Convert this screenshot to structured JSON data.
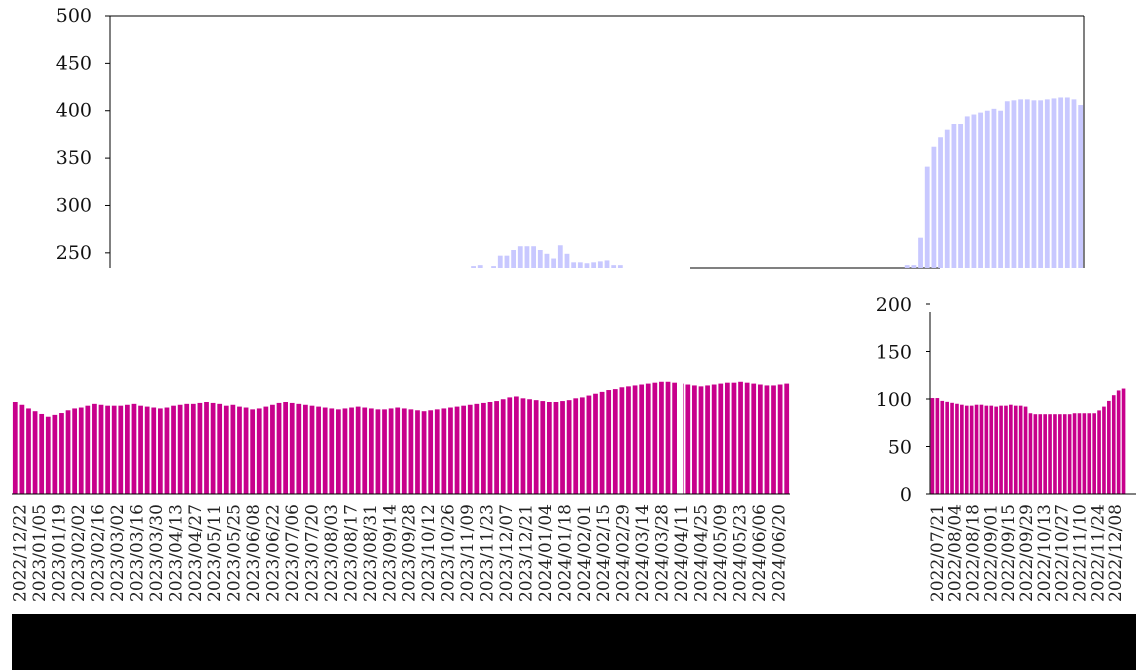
{
  "chart_data": [
    {
      "type": "bar",
      "y_ticks": [
        250,
        300,
        350,
        400,
        450,
        500
      ],
      "ylim": [
        234,
        500
      ],
      "grid": false,
      "color": "#c8c8ff",
      "values": [
        234,
        234,
        234,
        234,
        234,
        234,
        234,
        234,
        234,
        234,
        234,
        234,
        234,
        234,
        234,
        234,
        234,
        234,
        234,
        234,
        234,
        234,
        234,
        234,
        234,
        234,
        234,
        234,
        234,
        234,
        234,
        234,
        234,
        234,
        234,
        234,
        234,
        234,
        234,
        234,
        234,
        234,
        234,
        234,
        234,
        234,
        234,
        234,
        234,
        234,
        234,
        234,
        234,
        234,
        236,
        237,
        234,
        236,
        247,
        247,
        253,
        257,
        257,
        257,
        253,
        249,
        244,
        258,
        249,
        240,
        240,
        239,
        240,
        241,
        242,
        237,
        237,
        234,
        234,
        234,
        234,
        234,
        234,
        234,
        234,
        234,
        234,
        234,
        234,
        234,
        234,
        234,
        234,
        234,
        234,
        234,
        234,
        234,
        234,
        234,
        234,
        234,
        234,
        234,
        234,
        234,
        234,
        234,
        234,
        234,
        234,
        234,
        234,
        234,
        234,
        234,
        234,
        234,
        234,
        237,
        237,
        266,
        341,
        362,
        372,
        380,
        386,
        386,
        394,
        396,
        398,
        400,
        402,
        400,
        410,
        411,
        412,
        412,
        411,
        411,
        412,
        413,
        414,
        414,
        412,
        406
      ]
    },
    {
      "type": "bar",
      "color": "#c8008c",
      "ylim": [
        0,
        210
      ],
      "x_labels": [
        "2022/12/22",
        "2023/01/05",
        "2023/01/19",
        "2023/02/02",
        "2023/02/16",
        "2023/03/02",
        "2023/03/16",
        "2023/03/30",
        "2023/04/13",
        "2023/04/27",
        "2023/05/11",
        "2023/05/25",
        "2023/06/08",
        "2023/06/22",
        "2023/07/06",
        "2023/07/20",
        "2023/08/03",
        "2023/08/17",
        "2023/08/31",
        "2023/09/14",
        "2023/09/28",
        "2023/10/12",
        "2023/10/26",
        "2023/11/09",
        "2023/11/23",
        "2023/12/07",
        "2023/12/21",
        "2024/01/04",
        "2024/01/18",
        "2024/02/01",
        "2024/02/15",
        "2024/02/29",
        "2024/03/14",
        "2024/03/28",
        "2024/04/11",
        "2024/04/25",
        "2024/05/09",
        "2024/05/23",
        "2024/06/06",
        "2024/06/20"
      ],
      "values": [
        100,
        97,
        93,
        90,
        87,
        84,
        86,
        88,
        91,
        93,
        94,
        96,
        98,
        97,
        96,
        96,
        96,
        97,
        98,
        96,
        95,
        94,
        93,
        94,
        96,
        97,
        98,
        98,
        99,
        100,
        99,
        98,
        96,
        97,
        95,
        94,
        92,
        93,
        95,
        97,
        99,
        100,
        99,
        98,
        97,
        96,
        95,
        94,
        93,
        92,
        93,
        94,
        95,
        94,
        93,
        92,
        92,
        93,
        94,
        93,
        92,
        91,
        90,
        91,
        92,
        93,
        94,
        95,
        96,
        97,
        98,
        99,
        100,
        101,
        103,
        105,
        106,
        104,
        103,
        102,
        101,
        100,
        100,
        101,
        102,
        104,
        105,
        107,
        109,
        111,
        113,
        114,
        116,
        117,
        118,
        119,
        120,
        121,
        122,
        122,
        121,
        120,
        119,
        118,
        117,
        118,
        119,
        120,
        121,
        121,
        122,
        121,
        120,
        119,
        118,
        118,
        119,
        120
      ]
    },
    {
      "type": "bar",
      "color": "#c8008c",
      "y_ticks": [
        0,
        50,
        100,
        150,
        200
      ],
      "ylim": [
        0,
        200
      ],
      "x_labels": [
        "2022/07/21",
        "2022/08/04",
        "2022/08/18",
        "2022/09/01",
        "2022/09/15",
        "2022/09/29",
        "2022/10/13",
        "2022/10/27",
        "2022/11/10",
        "2022/11/24",
        "2022/12/08"
      ],
      "values": [
        101,
        101,
        98,
        97,
        96,
        95,
        94,
        93,
        93,
        94,
        94,
        93,
        93,
        92,
        93,
        93,
        94,
        93,
        93,
        92,
        85,
        84,
        84,
        84,
        84,
        84,
        84,
        84,
        84,
        85,
        85,
        85,
        85,
        85,
        88,
        92,
        98,
        104,
        109,
        111
      ]
    }
  ]
}
